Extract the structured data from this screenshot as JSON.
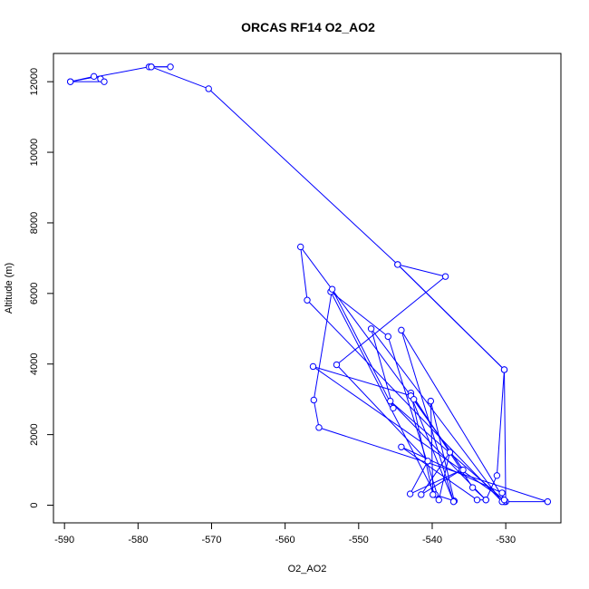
{
  "chart_data": {
    "type": "line",
    "title": "ORCAS RF14 O2_AO2",
    "xlabel": "O2_AO2",
    "ylabel": "Altitude (m)",
    "xlim": [
      -591.5,
      -522.5
    ],
    "ylim": [
      -500,
      12800
    ],
    "x_ticks": [
      -590,
      -580,
      -570,
      -560,
      -550,
      -540,
      -530
    ],
    "y_ticks": [
      0,
      2000,
      4000,
      6000,
      8000,
      10000,
      12000
    ],
    "grid": false,
    "legend": "none",
    "series": [
      {
        "color": "#0000ff",
        "marker": "open-circle",
        "points": [
          [
            -589.2,
            12000
          ],
          [
            -586.0,
            12150
          ],
          [
            -585.1,
            12080
          ],
          [
            -584.6,
            12000
          ],
          [
            -589.2,
            12000
          ],
          [
            -578.5,
            12420
          ],
          [
            -578.2,
            12420
          ],
          [
            -575.6,
            12420
          ],
          [
            -578.2,
            12420
          ],
          [
            -570.4,
            11800
          ],
          [
            -544.7,
            6820
          ],
          [
            -538.2,
            6480
          ],
          [
            -553.0,
            3980
          ],
          [
            -540.6,
            1250
          ],
          [
            -543.0,
            320
          ],
          [
            -536.0,
            1000
          ],
          [
            -541.5,
            300
          ],
          [
            -537.6,
            1500
          ],
          [
            -539.1,
            150
          ],
          [
            -546.0,
            4780
          ],
          [
            -553.8,
            6050
          ],
          [
            -539.6,
            300
          ],
          [
            -537.0,
            120
          ],
          [
            -540.2,
            2950
          ],
          [
            -539.9,
            300
          ],
          [
            -542.9,
            3180
          ],
          [
            -534.5,
            500
          ],
          [
            -532.7,
            150
          ],
          [
            -545.7,
            2950
          ],
          [
            -530.0,
            100
          ],
          [
            -530.2,
            3840
          ],
          [
            -544.7,
            6820
          ],
          [
            -530.2,
            3840
          ],
          [
            -531.2,
            840
          ],
          [
            -532.7,
            150
          ],
          [
            -533.9,
            150
          ],
          [
            -544.2,
            1650
          ],
          [
            -530.5,
            350
          ],
          [
            -530.2,
            100
          ],
          [
            -524.3,
            100
          ],
          [
            -555.4,
            2200
          ],
          [
            -556.1,
            2980
          ],
          [
            -553.6,
            6120
          ],
          [
            -545.3,
            2750
          ],
          [
            -548.3,
            5000
          ],
          [
            -530.5,
            100
          ],
          [
            -557.0,
            5810
          ],
          [
            -557.9,
            7320
          ],
          [
            -542.9,
            3100
          ],
          [
            -537.1,
            100
          ],
          [
            -544.2,
            4960
          ],
          [
            -530.2,
            150
          ],
          [
            -556.2,
            3930
          ],
          [
            -542.9,
            3100
          ],
          [
            -535.8,
            1000
          ],
          [
            -542.5,
            3000
          ]
        ]
      }
    ]
  }
}
